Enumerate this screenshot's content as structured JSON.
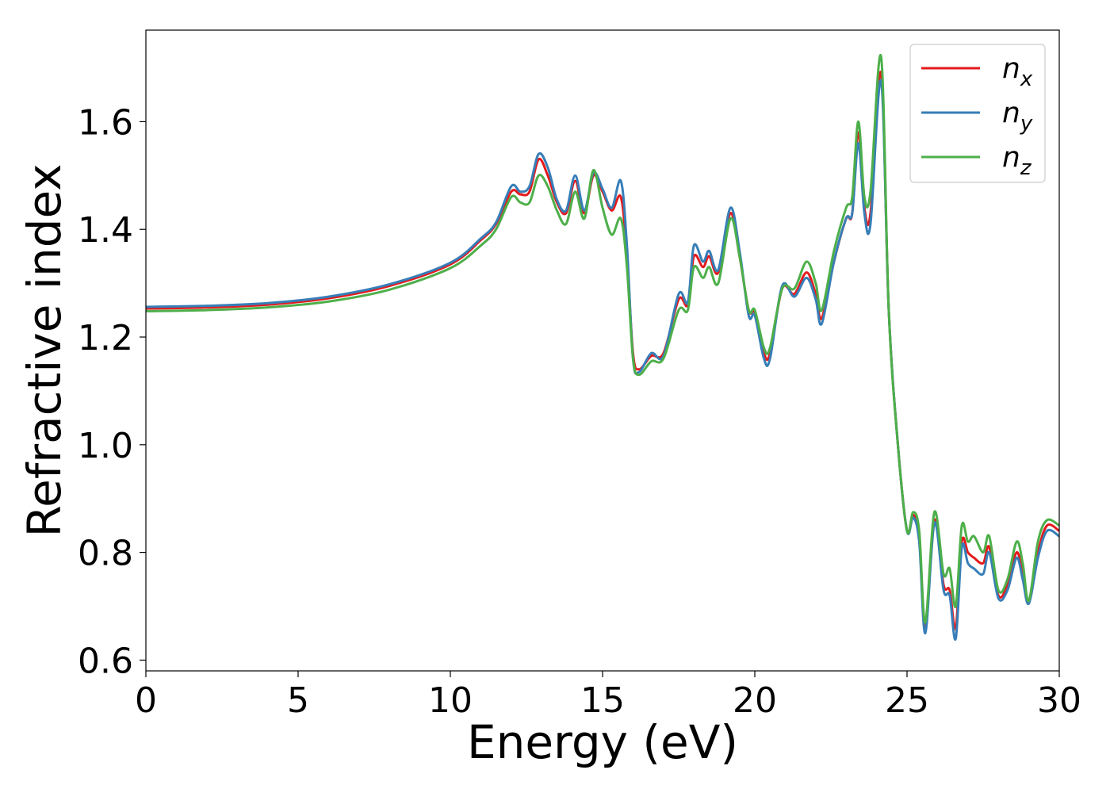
{
  "chart_data": {
    "type": "line",
    "xlabel": "Energy (eV)",
    "ylabel": "Refractive index",
    "xlim": [
      0,
      30
    ],
    "ylim": [
      0.58,
      1.77
    ],
    "xticks": [
      0,
      5,
      10,
      15,
      20,
      25,
      30
    ],
    "xtick_labels": [
      "0",
      "5",
      "10",
      "15",
      "20",
      "25",
      "30"
    ],
    "yticks": [
      0.6,
      0.8,
      1.0,
      1.2,
      1.4,
      1.6
    ],
    "ytick_labels": [
      "0.6",
      "0.8",
      "1.0",
      "1.2",
      "1.4",
      "1.6"
    ],
    "grid": false,
    "legend_position": "top-right",
    "x": [
      0,
      2,
      4,
      6,
      8,
      10,
      11,
      11.5,
      12,
      12.3,
      12.6,
      12.9,
      13.2,
      13.5,
      13.8,
      14.1,
      14.4,
      14.7,
      15.0,
      15.3,
      15.6,
      15.8,
      16.0,
      16.2,
      16.6,
      17.0,
      17.5,
      17.8,
      18.0,
      18.3,
      18.5,
      18.8,
      19.2,
      19.5,
      19.8,
      20.0,
      20.3,
      20.5,
      20.9,
      21.3,
      21.7,
      22.0,
      22.2,
      22.6,
      23.0,
      23.2,
      23.4,
      23.6,
      23.8,
      24.15,
      24.4,
      24.7,
      25.0,
      25.2,
      25.4,
      25.6,
      25.9,
      26.2,
      26.4,
      26.6,
      26.8,
      27.0,
      27.2,
      27.5,
      27.7,
      28.0,
      28.3,
      28.6,
      28.8,
      29.0,
      29.3,
      29.6,
      30.0
    ],
    "series": [
      {
        "name": "n",
        "subscript": "x",
        "color": "#e41a1c",
        "values": [
          1.253,
          1.255,
          1.26,
          1.272,
          1.295,
          1.335,
          1.38,
          1.41,
          1.47,
          1.465,
          1.47,
          1.53,
          1.5,
          1.45,
          1.43,
          1.49,
          1.43,
          1.5,
          1.47,
          1.435,
          1.46,
          1.35,
          1.17,
          1.14,
          1.165,
          1.17,
          1.27,
          1.26,
          1.35,
          1.33,
          1.35,
          1.32,
          1.43,
          1.35,
          1.25,
          1.245,
          1.17,
          1.17,
          1.29,
          1.28,
          1.32,
          1.28,
          1.235,
          1.34,
          1.42,
          1.43,
          1.58,
          1.44,
          1.43,
          1.69,
          1.25,
          1.0,
          0.84,
          0.87,
          0.83,
          0.66,
          0.86,
          0.74,
          0.73,
          0.66,
          0.82,
          0.8,
          0.79,
          0.78,
          0.81,
          0.72,
          0.74,
          0.8,
          0.76,
          0.71,
          0.8,
          0.85,
          0.84
        ]
      },
      {
        "name": "n",
        "subscript": "y",
        "color": "#377eb8",
        "values": [
          1.256,
          1.258,
          1.263,
          1.275,
          1.298,
          1.338,
          1.383,
          1.413,
          1.48,
          1.47,
          1.48,
          1.54,
          1.515,
          1.455,
          1.435,
          1.5,
          1.435,
          1.505,
          1.475,
          1.44,
          1.49,
          1.37,
          1.16,
          1.135,
          1.17,
          1.165,
          1.28,
          1.265,
          1.37,
          1.34,
          1.36,
          1.325,
          1.44,
          1.36,
          1.24,
          1.24,
          1.16,
          1.16,
          1.295,
          1.275,
          1.31,
          1.27,
          1.225,
          1.34,
          1.42,
          1.43,
          1.56,
          1.43,
          1.41,
          1.675,
          1.25,
          1.0,
          0.84,
          0.865,
          0.82,
          0.65,
          0.855,
          0.73,
          0.72,
          0.64,
          0.81,
          0.78,
          0.77,
          0.76,
          0.8,
          0.715,
          0.73,
          0.79,
          0.75,
          0.705,
          0.79,
          0.84,
          0.83
        ]
      },
      {
        "name": "n",
        "subscript": "z",
        "color": "#4daf4a",
        "values": [
          1.248,
          1.25,
          1.255,
          1.266,
          1.288,
          1.328,
          1.37,
          1.4,
          1.46,
          1.45,
          1.45,
          1.5,
          1.48,
          1.435,
          1.41,
          1.47,
          1.42,
          1.51,
          1.44,
          1.39,
          1.42,
          1.33,
          1.16,
          1.13,
          1.155,
          1.16,
          1.25,
          1.25,
          1.33,
          1.31,
          1.33,
          1.3,
          1.42,
          1.35,
          1.25,
          1.25,
          1.18,
          1.18,
          1.29,
          1.29,
          1.34,
          1.3,
          1.25,
          1.36,
          1.44,
          1.46,
          1.6,
          1.46,
          1.47,
          1.72,
          1.25,
          1.0,
          0.84,
          0.875,
          0.84,
          0.67,
          0.875,
          0.76,
          0.77,
          0.7,
          0.85,
          0.82,
          0.83,
          0.8,
          0.83,
          0.73,
          0.75,
          0.82,
          0.78,
          0.71,
          0.82,
          0.86,
          0.85
        ]
      }
    ]
  }
}
